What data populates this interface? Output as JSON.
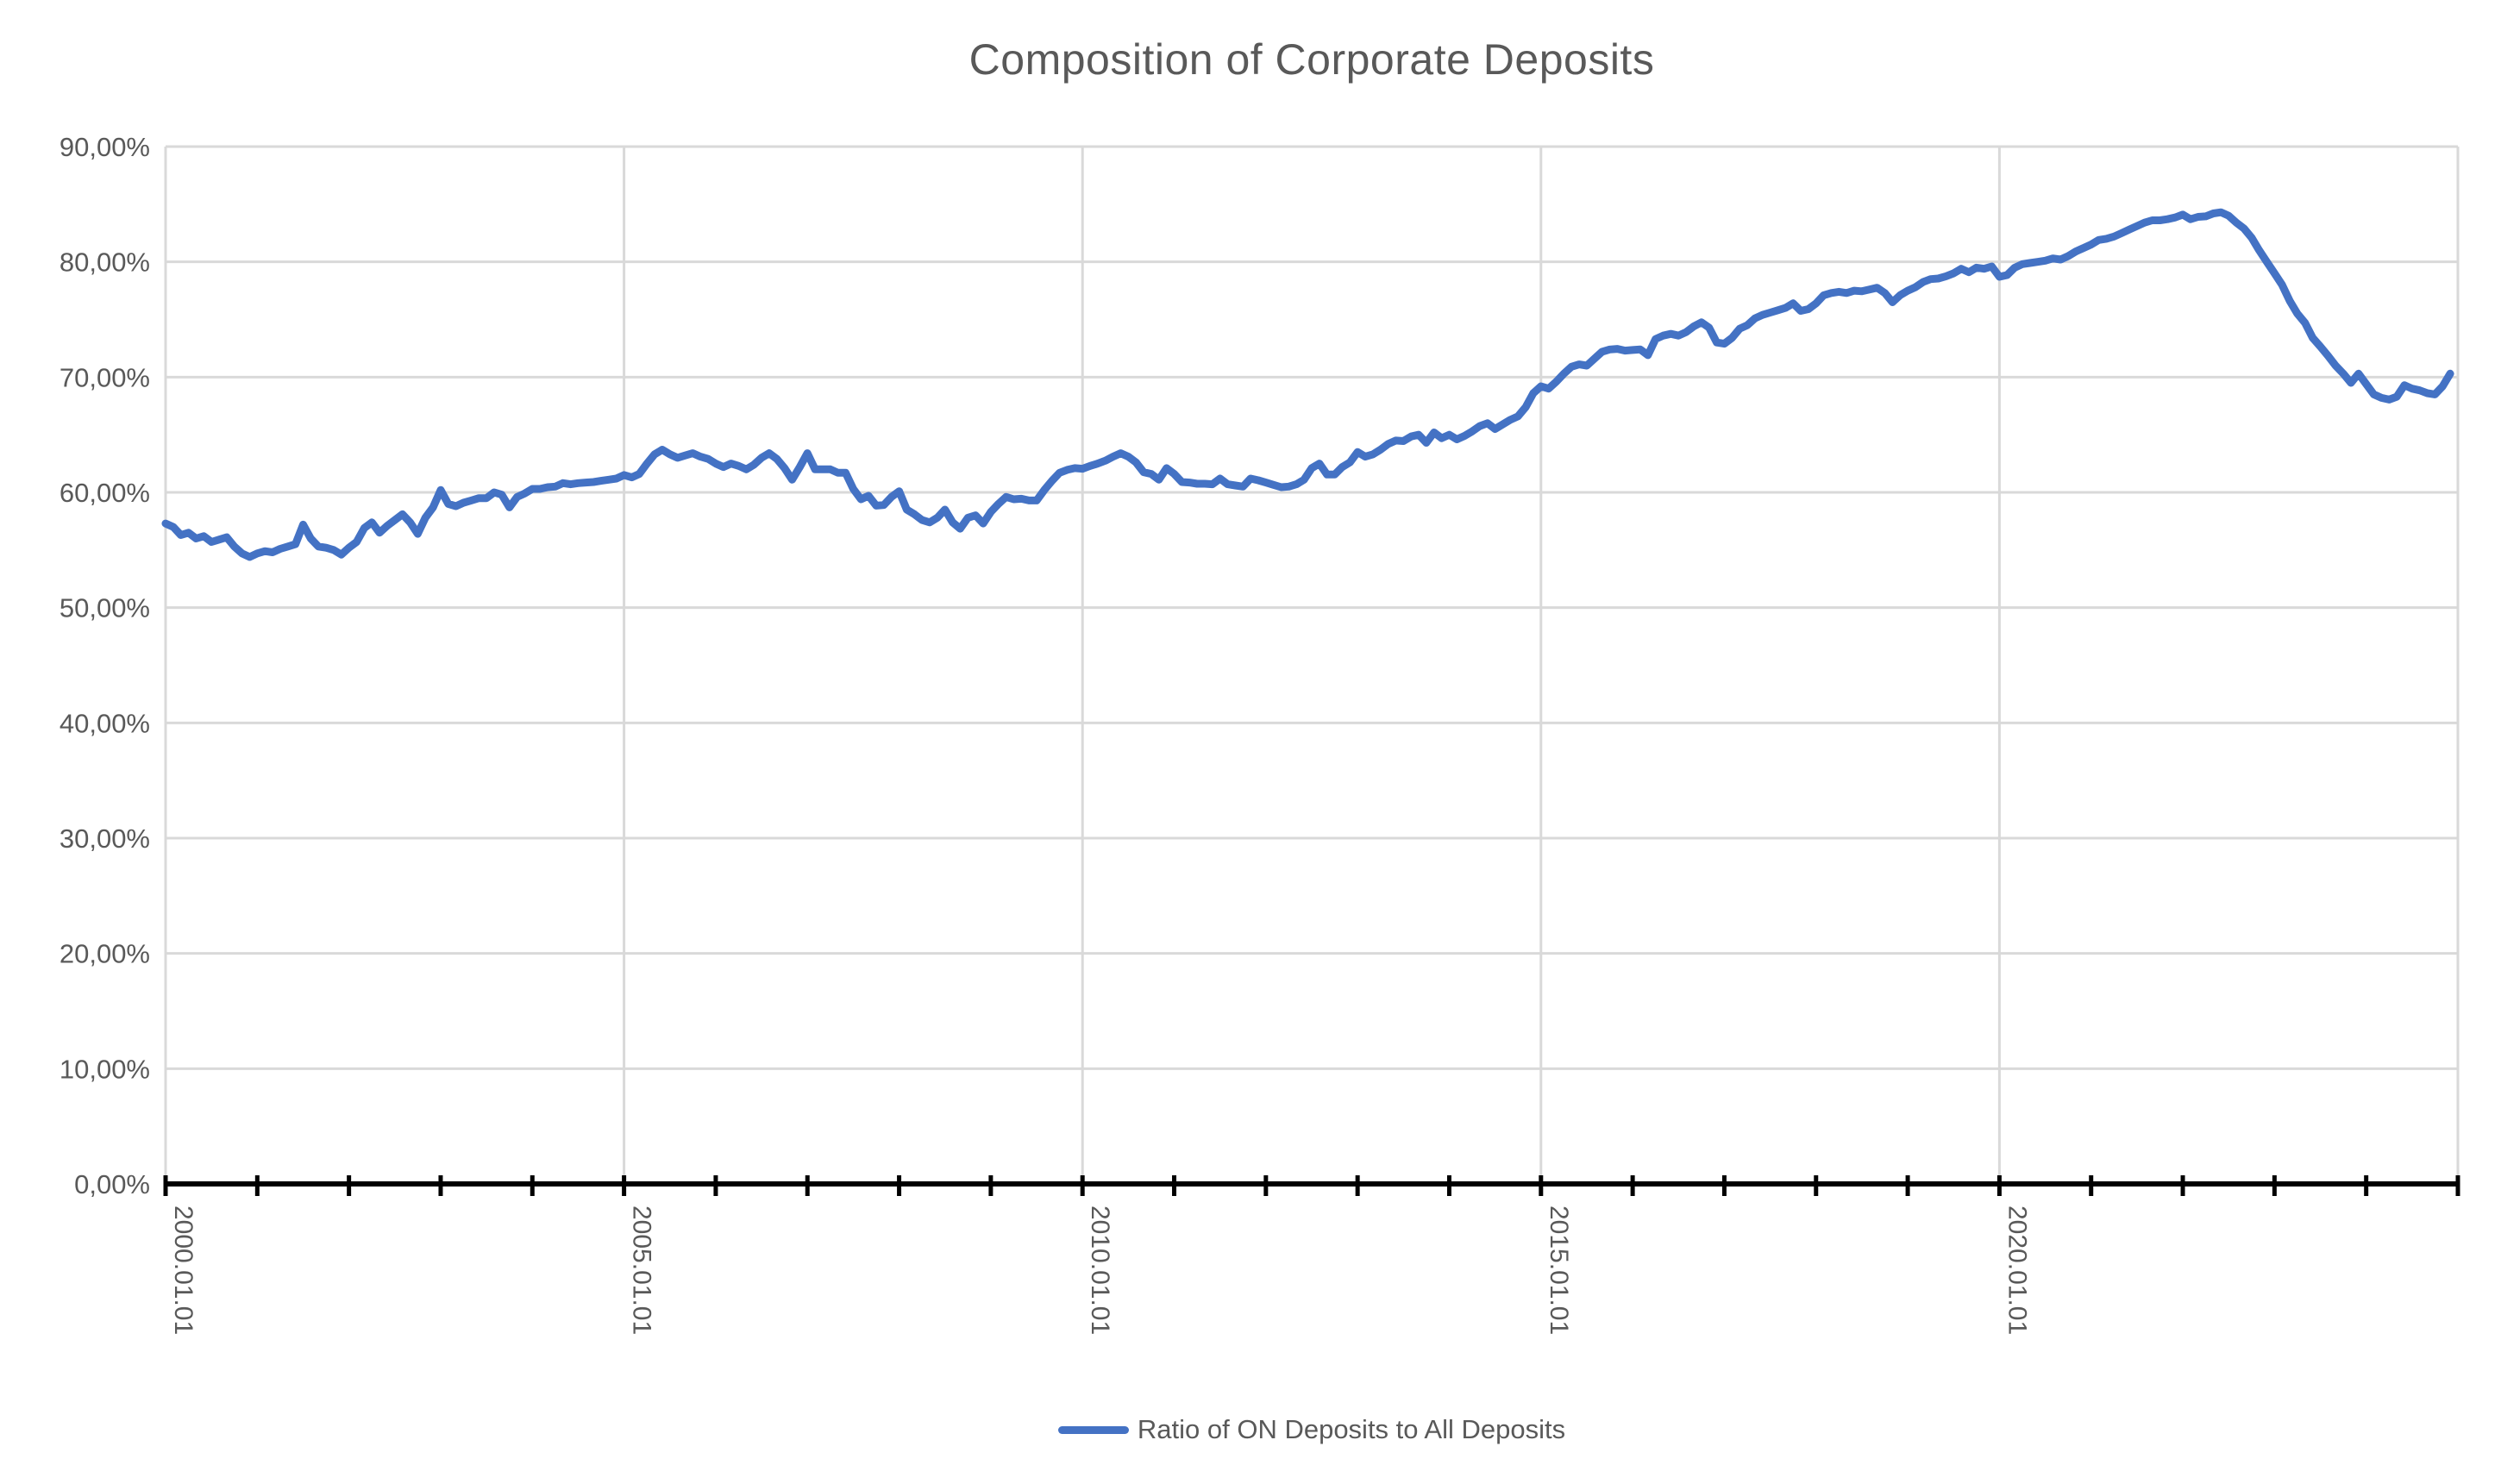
{
  "title": "Composition of Corporate Deposits",
  "legend": {
    "series_label": "Ratio of ON Deposits to All Deposits"
  },
  "axes": {
    "y_tick_labels": [
      "0,00%",
      "10,00%",
      "20,00%",
      "30,00%",
      "40,00%",
      "50,00%",
      "60,00%",
      "70,00%",
      "80,00%",
      "90,00%"
    ],
    "x_tick_labels": [
      "2000.01.01",
      "2005.01.01",
      "2010.01.01",
      "2015.01.01",
      "2020.01.01"
    ]
  },
  "colors": {
    "series_line": "#4472C4",
    "gridline": "#D9D9D9",
    "axis_line": "#000000",
    "tick": "#000000",
    "label_text": "#595959",
    "title_text": "#595959",
    "background": "#FFFFFF"
  },
  "chart_data": {
    "type": "line",
    "title": "Composition of Corporate Deposits",
    "xlabel": "",
    "ylabel": "",
    "ylim": [
      0,
      90
    ],
    "y_tick_step": 10,
    "y_tick_format": "percent-comma-decimal",
    "x_range": [
      "2000.01.01",
      "2025.01.01"
    ],
    "x_major_gridline_years": [
      2000,
      2005,
      2010,
      2015,
      2020,
      2025
    ],
    "x_minor_tick_interval": "1 year",
    "grid": true,
    "legend_position": "bottom",
    "frequency": "monthly",
    "x_start": "2000.01",
    "x_end": "2024.12",
    "series": [
      {
        "name": "Ratio of ON Deposits to All Deposits",
        "color": "#4472C4",
        "values": [
          57.3,
          57.0,
          56.3,
          56.5,
          56.0,
          56.2,
          55.7,
          55.9,
          56.1,
          55.3,
          54.7,
          54.4,
          54.7,
          54.9,
          54.8,
          55.1,
          55.3,
          55.5,
          57.2,
          56.0,
          55.3,
          55.2,
          55.0,
          54.6,
          55.2,
          55.7,
          56.9,
          57.4,
          56.5,
          57.1,
          57.6,
          58.1,
          57.4,
          56.4,
          57.8,
          58.7,
          60.2,
          59.0,
          58.8,
          59.1,
          59.3,
          59.5,
          59.5,
          60.0,
          59.8,
          58.7,
          59.6,
          59.9,
          60.3,
          60.3,
          60.45,
          60.5,
          60.8,
          60.7,
          60.8,
          60.85,
          60.9,
          61.0,
          61.1,
          61.2,
          61.5,
          61.3,
          61.6,
          62.5,
          63.3,
          63.7,
          63.3,
          63.0,
          63.2,
          63.4,
          63.1,
          62.9,
          62.5,
          62.2,
          62.5,
          62.3,
          62.0,
          62.4,
          63.0,
          63.4,
          62.9,
          62.1,
          61.1,
          62.2,
          63.4,
          62.0,
          62.0,
          62.0,
          61.7,
          61.7,
          60.3,
          59.4,
          59.7,
          58.85,
          58.9,
          59.6,
          60.1,
          58.5,
          58.1,
          57.6,
          57.4,
          57.8,
          58.5,
          57.4,
          56.85,
          57.8,
          58.0,
          57.3,
          58.3,
          59.0,
          59.6,
          59.4,
          59.45,
          59.3,
          59.3,
          60.2,
          61.0,
          61.7,
          61.95,
          62.1,
          62.05,
          62.3,
          62.5,
          62.75,
          63.1,
          63.4,
          63.1,
          62.6,
          61.75,
          61.6,
          61.1,
          62.1,
          61.6,
          60.9,
          60.85,
          60.75,
          60.75,
          60.7,
          61.2,
          60.7,
          60.6,
          60.5,
          61.2,
          61.05,
          60.85,
          60.65,
          60.45,
          60.5,
          60.7,
          61.1,
          62.1,
          62.5,
          61.55,
          61.55,
          62.2,
          62.6,
          63.5,
          63.1,
          63.3,
          63.7,
          64.2,
          64.5,
          64.45,
          64.85,
          65.0,
          64.3,
          65.2,
          64.7,
          65.0,
          64.6,
          64.9,
          65.3,
          65.75,
          66.0,
          65.5,
          65.9,
          66.3,
          66.6,
          67.4,
          68.6,
          69.2,
          69.0,
          69.6,
          70.3,
          70.9,
          71.1,
          71.0,
          71.6,
          72.2,
          72.4,
          72.45,
          72.3,
          72.35,
          72.4,
          71.9,
          73.3,
          73.6,
          73.75,
          73.6,
          73.9,
          74.4,
          74.75,
          74.3,
          73.0,
          72.9,
          73.4,
          74.2,
          74.5,
          75.1,
          75.4,
          75.6,
          75.8,
          76.0,
          76.4,
          75.75,
          75.9,
          76.4,
          77.1,
          77.3,
          77.4,
          77.3,
          77.5,
          77.45,
          77.6,
          77.75,
          77.3,
          76.5,
          77.1,
          77.5,
          77.8,
          78.25,
          78.5,
          78.55,
          78.75,
          79.0,
          79.4,
          79.1,
          79.5,
          79.4,
          79.6,
          78.7,
          78.85,
          79.5,
          79.8,
          79.9,
          80.0,
          80.1,
          80.3,
          80.2,
          80.5,
          80.9,
          81.2,
          81.5,
          81.9,
          82.0,
          82.2,
          82.5,
          82.8,
          83.1,
          83.4,
          83.6,
          83.6,
          83.7,
          83.85,
          84.1,
          83.7,
          83.9,
          83.95,
          84.2,
          84.3,
          84.0,
          83.4,
          82.9,
          82.1,
          81.0,
          80.0,
          79.0,
          78.0,
          76.6,
          75.5,
          74.7,
          73.4,
          72.65,
          71.85,
          71.0,
          70.3,
          69.5,
          70.3,
          69.4,
          68.5,
          68.2,
          68.05,
          68.3,
          69.3,
          69.0,
          68.85,
          68.6,
          68.5,
          69.2,
          70.3
        ]
      }
    ]
  }
}
